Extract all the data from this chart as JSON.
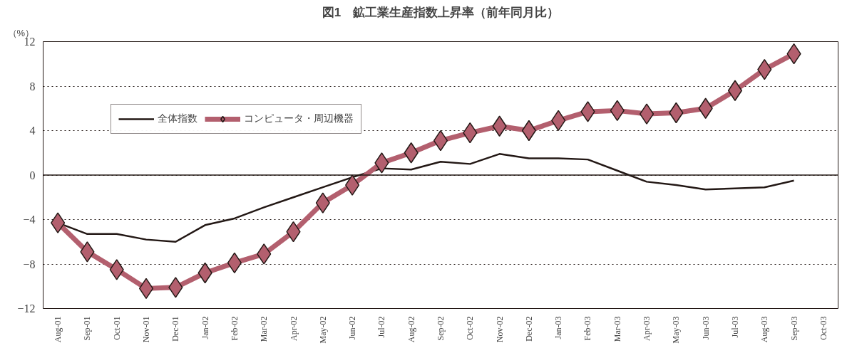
{
  "chart_data": {
    "type": "line",
    "title": "図1　鉱工業生産指数上昇率（前年同月比）",
    "ylabel": "（%）",
    "categories": [
      "Aug-01",
      "Sep-01",
      "Oct-01",
      "Nov-01",
      "Dec-01",
      "Jan-02",
      "Feb-02",
      "Mar-02",
      "Apr-02",
      "May-02",
      "Jun-02",
      "Jul-02",
      "Aug-02",
      "Sep-02",
      "Oct-02",
      "Nov-02",
      "Dec-02",
      "Jan-03",
      "Feb-03",
      "Mar-03",
      "Apr-03",
      "May-03",
      "Jun-03",
      "Jul-03",
      "Aug-03",
      "Sep-03",
      "Oct-03"
    ],
    "series": [
      {
        "name": "全体指数",
        "color": "#231815",
        "marker": "none",
        "values": [
          -4.3,
          -5.3,
          -5.3,
          -5.8,
          -6.0,
          -4.5,
          -3.9,
          -2.9,
          -2.0,
          -1.1,
          -0.2,
          0.6,
          0.5,
          1.2,
          1.0,
          1.9,
          1.5,
          1.5,
          1.4,
          0.4,
          -0.6,
          -0.9,
          -1.3,
          -1.2,
          -1.1,
          -0.5,
          null
        ]
      },
      {
        "name": "コンピュータ・周辺機器",
        "color": "#b35f6e",
        "marker": "diamond",
        "values": [
          -4.3,
          -6.9,
          -8.5,
          -10.2,
          -10.1,
          -8.8,
          -7.9,
          -7.1,
          -5.1,
          -2.5,
          -0.9,
          1.1,
          2.0,
          3.1,
          3.8,
          4.4,
          4.0,
          4.9,
          5.7,
          5.8,
          5.5,
          5.6,
          6.0,
          7.6,
          9.5,
          10.9,
          null
        ]
      }
    ],
    "ylim": [
      -12,
      12
    ],
    "yticks": [
      -12,
      -8,
      -4,
      0,
      4,
      8,
      12
    ],
    "grid": "y",
    "legend": "top left",
    "ref_lines": [
      {
        "axis": "y",
        "value": 0,
        "line_style": "solid",
        "color": "#231815"
      }
    ]
  }
}
